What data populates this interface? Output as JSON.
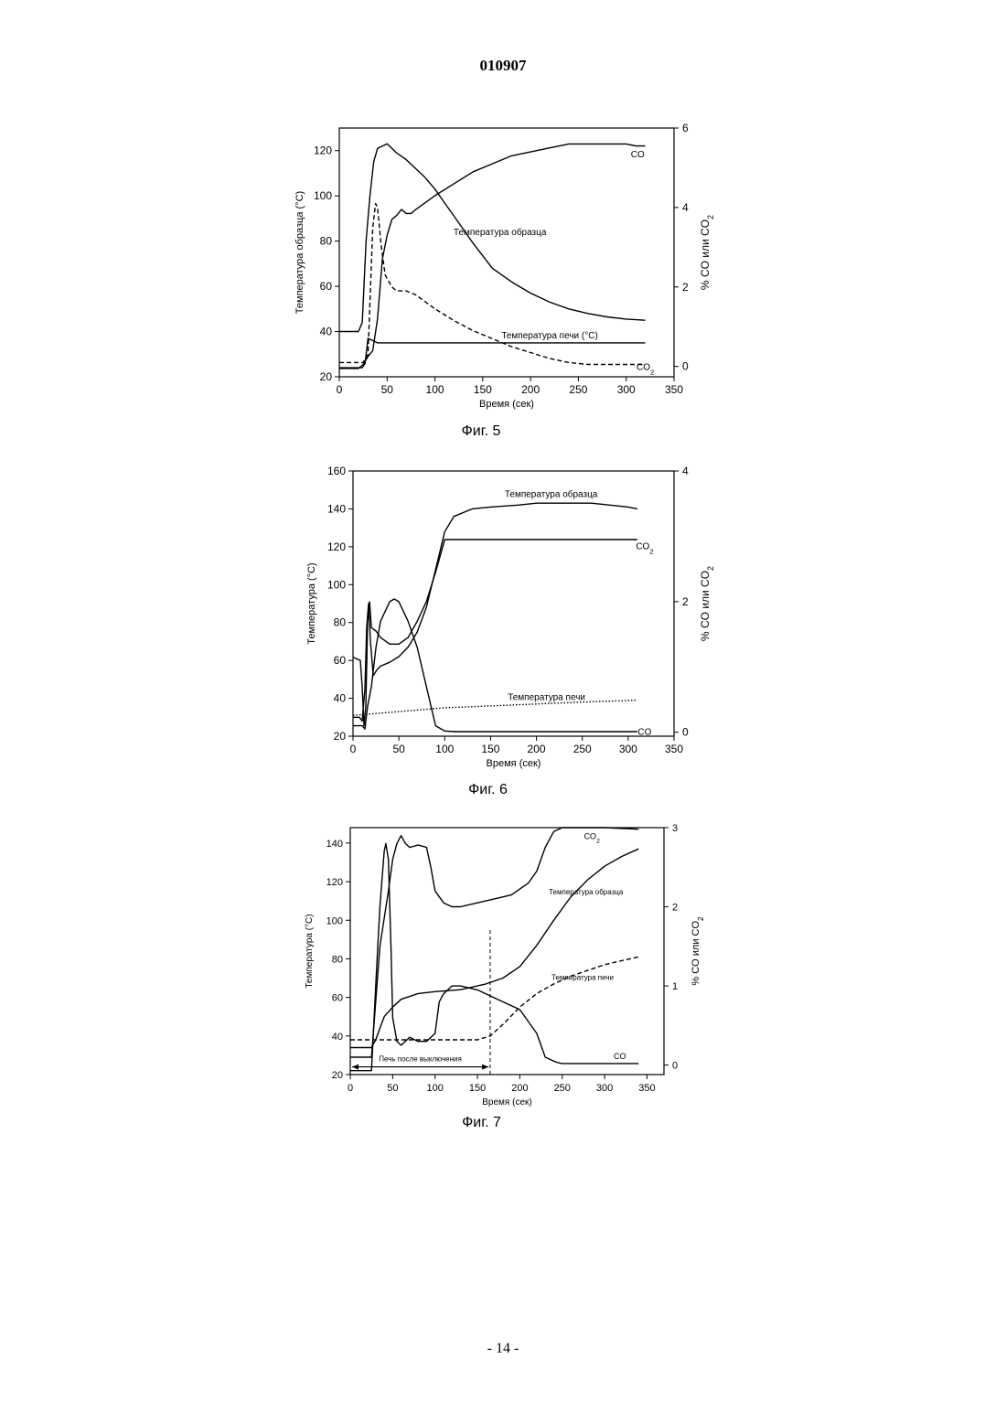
{
  "header": {
    "doc_number": "010907"
  },
  "footer": {
    "page_number": "- 14 -"
  },
  "chart_data": [
    {
      "type": "line",
      "caption": "Фиг. 5",
      "xlabel": "Время (сек)",
      "ylabel": "Температура образца  (°C)",
      "y2label": "% CO или CO2",
      "xlim": [
        0,
        350
      ],
      "ylim": [
        20,
        130
      ],
      "y2lim": [
        -0.26,
        6
      ],
      "xticks": [
        0,
        50,
        100,
        150,
        200,
        250,
        300,
        350
      ],
      "yticks": [
        20,
        40,
        60,
        80,
        100,
        120
      ],
      "y2ticks": [
        0,
        2,
        4,
        6
      ],
      "series": [
        {
          "name": "Температура образца",
          "axis": "left",
          "style": "solid",
          "x": [
            0,
            20,
            24,
            28,
            32,
            36,
            40,
            45,
            50,
            55,
            60,
            70,
            80,
            90,
            100,
            110,
            120,
            140,
            160,
            180,
            200,
            220,
            240,
            260,
            280,
            300,
            320
          ],
          "y": [
            40,
            40,
            44,
            80,
            100,
            115,
            121,
            122,
            123,
            121,
            119,
            116,
            112,
            108,
            103,
            97,
            91,
            79,
            68,
            62,
            57,
            53,
            50,
            48,
            46.5,
            45.5,
            45
          ]
        },
        {
          "name": "CO",
          "axis": "right",
          "style": "solid",
          "x": [
            0,
            20,
            25,
            30,
            35,
            40,
            45,
            50,
            55,
            60,
            65,
            70,
            75,
            80,
            100,
            120,
            140,
            160,
            180,
            200,
            220,
            240,
            260,
            280,
            300,
            310,
            320
          ],
          "y": [
            -0.05,
            -0.05,
            0.05,
            0.25,
            0.4,
            1.2,
            2.7,
            3.3,
            3.7,
            3.8,
            3.95,
            3.85,
            3.85,
            3.95,
            4.3,
            4.6,
            4.9,
            5.1,
            5.3,
            5.4,
            5.5,
            5.6,
            5.6,
            5.6,
            5.6,
            5.55,
            5.55
          ]
        },
        {
          "name": "Температура печи  (°C)",
          "axis": "left",
          "style": "solid",
          "x": [
            0,
            20,
            24,
            27,
            30,
            35,
            40,
            60,
            100,
            150,
            200,
            250,
            300,
            320
          ],
          "y": [
            24,
            24,
            24,
            26,
            37,
            36,
            35,
            35,
            35,
            35,
            35,
            35,
            35,
            35
          ]
        },
        {
          "name": "CO2",
          "axis": "right",
          "style": "dashed",
          "x": [
            0,
            25,
            30,
            35,
            38,
            40,
            44,
            48,
            55,
            60,
            70,
            80,
            100,
            120,
            140,
            160,
            180,
            200,
            220,
            240,
            260,
            280,
            300,
            320
          ],
          "y": [
            0.1,
            0.1,
            0.3,
            3.5,
            4.1,
            4.0,
            3.0,
            2.3,
            2.0,
            1.9,
            1.9,
            1.8,
            1.45,
            1.15,
            0.9,
            0.7,
            0.5,
            0.35,
            0.2,
            0.1,
            0.05,
            0.05,
            0.05,
            0.05
          ]
        }
      ],
      "annotations": [
        {
          "text": "CO",
          "x": 312,
          "y2": 5.35
        },
        {
          "text": "Температура образца",
          "x": 168,
          "y2": 3.4
        },
        {
          "text": "Температура печи  (°C)",
          "x": 220,
          "y2": 0.8
        },
        {
          "text": "CO2",
          "x": 320,
          "y2": 0
        }
      ]
    },
    {
      "type": "line",
      "caption": "Фиг. 6",
      "xlabel": "Время (сек)",
      "ylabel": "Температура  (°C)",
      "y2label": "% CO или CO2",
      "xlim": [
        0,
        350
      ],
      "ylim": [
        20,
        160
      ],
      "y2lim": [
        -0.06,
        4
      ],
      "xticks": [
        0,
        50,
        100,
        150,
        200,
        250,
        300,
        350
      ],
      "yticks": [
        20,
        40,
        60,
        80,
        100,
        120,
        140,
        160
      ],
      "y2ticks": [
        0,
        2,
        4
      ],
      "series": [
        {
          "name": "Температура образца",
          "axis": "left",
          "style": "solid",
          "x": [
            0,
            7,
            10,
            13,
            15,
            17,
            19,
            22,
            26,
            30,
            40,
            50,
            60,
            70,
            80,
            90,
            100,
            110,
            130,
            150,
            180,
            200,
            230,
            260,
            280,
            300,
            310
          ],
          "y": [
            30,
            30,
            28,
            45,
            78,
            90,
            70,
            52,
            55,
            57,
            59,
            62,
            67,
            75,
            88,
            108,
            128,
            136,
            140,
            141,
            142,
            143,
            143,
            143,
            142,
            141,
            140
          ]
        },
        {
          "name": "CO2",
          "axis": "right",
          "style": "solid",
          "x": [
            0,
            8,
            10,
            12,
            14,
            16,
            18,
            20,
            25,
            30,
            40,
            50,
            60,
            70,
            80,
            90,
            100,
            150,
            200,
            250,
            300,
            310
          ],
          "y": [
            1.15,
            1.1,
            0.7,
            0.1,
            0.4,
            1.7,
            2.0,
            1.6,
            1.55,
            1.45,
            1.35,
            1.35,
            1.45,
            1.7,
            2.0,
            2.45,
            2.95,
            2.95,
            2.95,
            2.95,
            2.95,
            2.95
          ]
        },
        {
          "name": "CO",
          "axis": "right",
          "style": "solid",
          "x": [
            0,
            5,
            10,
            13,
            16,
            20,
            25,
            30,
            40,
            45,
            50,
            60,
            70,
            80,
            90,
            100,
            110,
            150,
            200,
            250,
            300,
            310
          ],
          "y": [
            0.1,
            0.1,
            0.1,
            0.05,
            0.4,
            0.7,
            1.3,
            1.7,
            2.0,
            2.04,
            2.0,
            1.7,
            1.3,
            0.7,
            0.1,
            0.02,
            0.01,
            0.01,
            0.01,
            0.01,
            0.01,
            0.01
          ]
        },
        {
          "name": "Температура печи",
          "axis": "left",
          "style": "dotted",
          "x": [
            0,
            50,
            100,
            150,
            200,
            250,
            310
          ],
          "y": [
            31,
            33,
            35,
            36,
            37,
            38,
            39
          ]
        }
      ],
      "annotations": [
        {
          "text": "Температура образца",
          "x": 216,
          "y2": 3.66
        },
        {
          "text": "CO2",
          "x": 318,
          "y2": 2.86
        },
        {
          "text": "Температура печи",
          "x": 211,
          "y2": 0.55
        },
        {
          "text": "CO",
          "x": 318,
          "y2": 0.02
        }
      ]
    },
    {
      "type": "line",
      "caption": "Фиг. 7",
      "xlabel": "Время (сек)",
      "ylabel": "Температура  (°C)",
      "y2label": "% CO или CO2",
      "xlim": [
        0,
        370
      ],
      "ylim": [
        20,
        148
      ],
      "y2lim": [
        -0.12,
        3
      ],
      "xticks": [
        0,
        50,
        100,
        150,
        200,
        250,
        300,
        350
      ],
      "yticks": [
        20,
        40,
        60,
        80,
        100,
        120,
        140
      ],
      "y2ticks": [
        0,
        1,
        2,
        3
      ],
      "series": [
        {
          "name": "CO2",
          "axis": "right",
          "style": "solid",
          "x": [
            0,
            25,
            30,
            35,
            45,
            50,
            55,
            60,
            65,
            70,
            80,
            90,
            95,
            100,
            110,
            120,
            130,
            150,
            170,
            190,
            210,
            220,
            230,
            240,
            250,
            300,
            340
          ],
          "y": [
            0.1,
            0.1,
            0.8,
            1.5,
            2.2,
            2.6,
            2.8,
            2.9,
            2.8,
            2.75,
            2.78,
            2.75,
            2.5,
            2.2,
            2.05,
            2.0,
            2.0,
            2.05,
            2.1,
            2.15,
            2.3,
            2.45,
            2.75,
            2.95,
            3.0,
            3.0,
            2.98
          ]
        },
        {
          "name": "Температура образца",
          "axis": "left",
          "style": "solid",
          "x": [
            0,
            25,
            30,
            35,
            40,
            50,
            60,
            80,
            100,
            130,
            160,
            180,
            200,
            220,
            240,
            260,
            280,
            300,
            320,
            340
          ],
          "y": [
            34,
            34,
            38,
            44,
            50,
            55,
            59,
            62,
            63,
            64,
            67,
            70,
            76,
            87,
            100,
            112,
            121,
            128,
            133,
            137
          ]
        },
        {
          "name": "CO",
          "axis": "right",
          "style": "solid",
          "x": [
            0,
            25,
            30,
            35,
            40,
            42,
            45,
            48,
            50,
            55,
            60,
            70,
            80,
            90,
            100,
            105,
            110,
            120,
            130,
            150,
            170,
            200,
            220,
            230,
            240,
            245,
            250,
            300,
            340
          ],
          "y": [
            -0.07,
            -0.07,
            1.0,
            2.0,
            2.7,
            2.8,
            2.6,
            1.5,
            0.6,
            0.3,
            0.25,
            0.35,
            0.3,
            0.3,
            0.4,
            0.8,
            0.9,
            1.0,
            1.0,
            0.95,
            0.85,
            0.7,
            0.4,
            0.1,
            0.05,
            0.03,
            0.02,
            0.02,
            0.02
          ]
        },
        {
          "name": "Температура печи",
          "axis": "left",
          "style": "dashed",
          "x": [
            0,
            50,
            100,
            150,
            165,
            180,
            200,
            220,
            240,
            260,
            280,
            300,
            320,
            340
          ],
          "y": [
            38,
            38,
            38,
            38,
            40,
            46,
            55,
            62,
            67,
            71,
            74,
            77,
            79,
            81
          ]
        }
      ],
      "marker_line": {
        "x": 165,
        "y_from": 20,
        "y_to": 96
      },
      "range_arrow": {
        "label": "Печь после выключения",
        "x_from": 0,
        "x_to": 163,
        "y": 24
      },
      "annotations": [
        {
          "text": "CO2",
          "x": 285,
          "y2": 2.9
        },
        {
          "text": "Температура образца",
          "x": 278,
          "y2": 2.2
        },
        {
          "text": "Температура печи",
          "x": 274,
          "y2": 1.12
        },
        {
          "text": "CO",
          "x": 318,
          "y2": 0.12
        }
      ]
    }
  ]
}
